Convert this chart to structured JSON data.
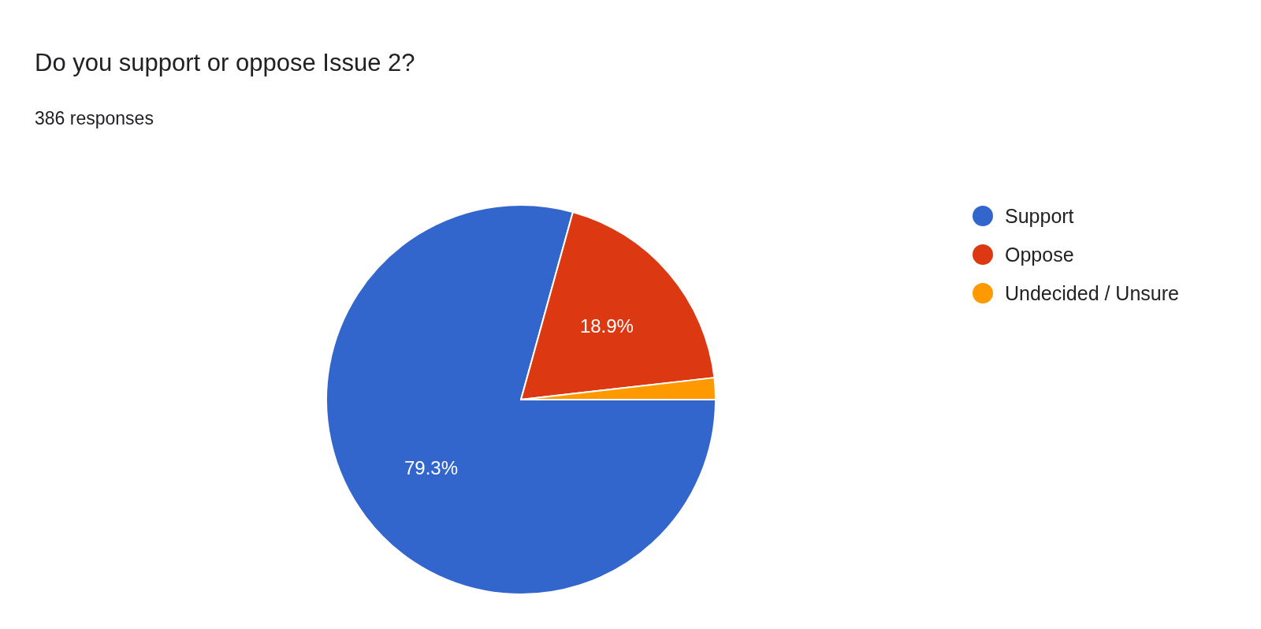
{
  "chart_data": {
    "type": "pie",
    "title": "Do you support or oppose Issue 2?",
    "subtitle": "386 responses",
    "categories": [
      "Support",
      "Oppose",
      "Undecided / Unsure"
    ],
    "values": [
      79.3,
      18.9,
      1.8
    ],
    "colors": [
      "#3366cc",
      "#dc3912",
      "#ff9900"
    ],
    "value_labels": [
      "79.3%",
      "18.9%",
      null
    ],
    "legend": "right"
  }
}
